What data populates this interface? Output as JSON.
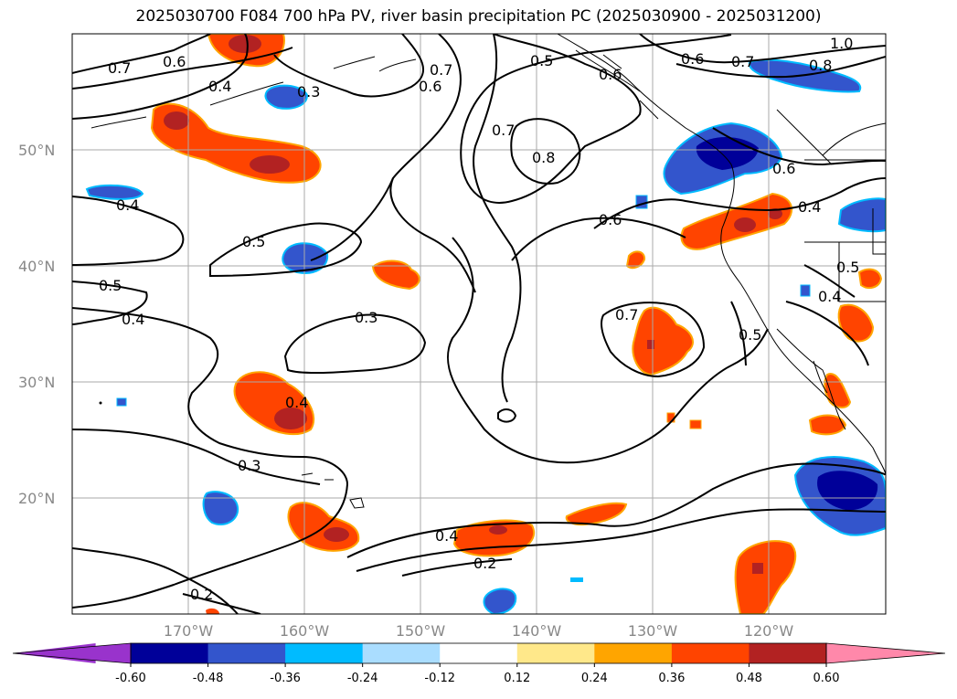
{
  "title": "2025030700 F084 700 hPa PV, river basin precipitation PC (2025030900 - 2025031200)",
  "lat_labels": [
    "50°N",
    "40°N",
    "30°N",
    "20°N"
  ],
  "lon_labels": [
    "170°W",
    "160°W",
    "150°W",
    "140°W",
    "130°W",
    "120°W"
  ],
  "colorbar": {
    "colors": [
      "#9933cc",
      "#000099",
      "#3355cc",
      "#00bbff",
      "#aaddff",
      "#ffffff",
      "#ffe88a",
      "#ffa500",
      "#ff4400",
      "#b22222",
      "#ff88aa"
    ],
    "labels": [
      "-0.60",
      "-0.48",
      "-0.36",
      "-0.24",
      "-0.12",
      "0.12",
      "0.24",
      "0.36",
      "0.48",
      "0.60"
    ]
  },
  "contour_labels": [
    "0.7",
    "0.6",
    "0.4",
    "0.3",
    "0.7",
    "0.6",
    "0.5",
    "0.6",
    "0.7",
    "0.8",
    "1.0",
    "0.8",
    "0.7",
    "0.6",
    "0.4",
    "0.5",
    "0.5",
    "0.4",
    "0.3",
    "0.4",
    "0.3",
    "0.2",
    "0.4",
    "0.2",
    "0.6",
    "0.7",
    "0.5",
    "0.4",
    "0.5",
    "0.4",
    "0.6"
  ]
}
